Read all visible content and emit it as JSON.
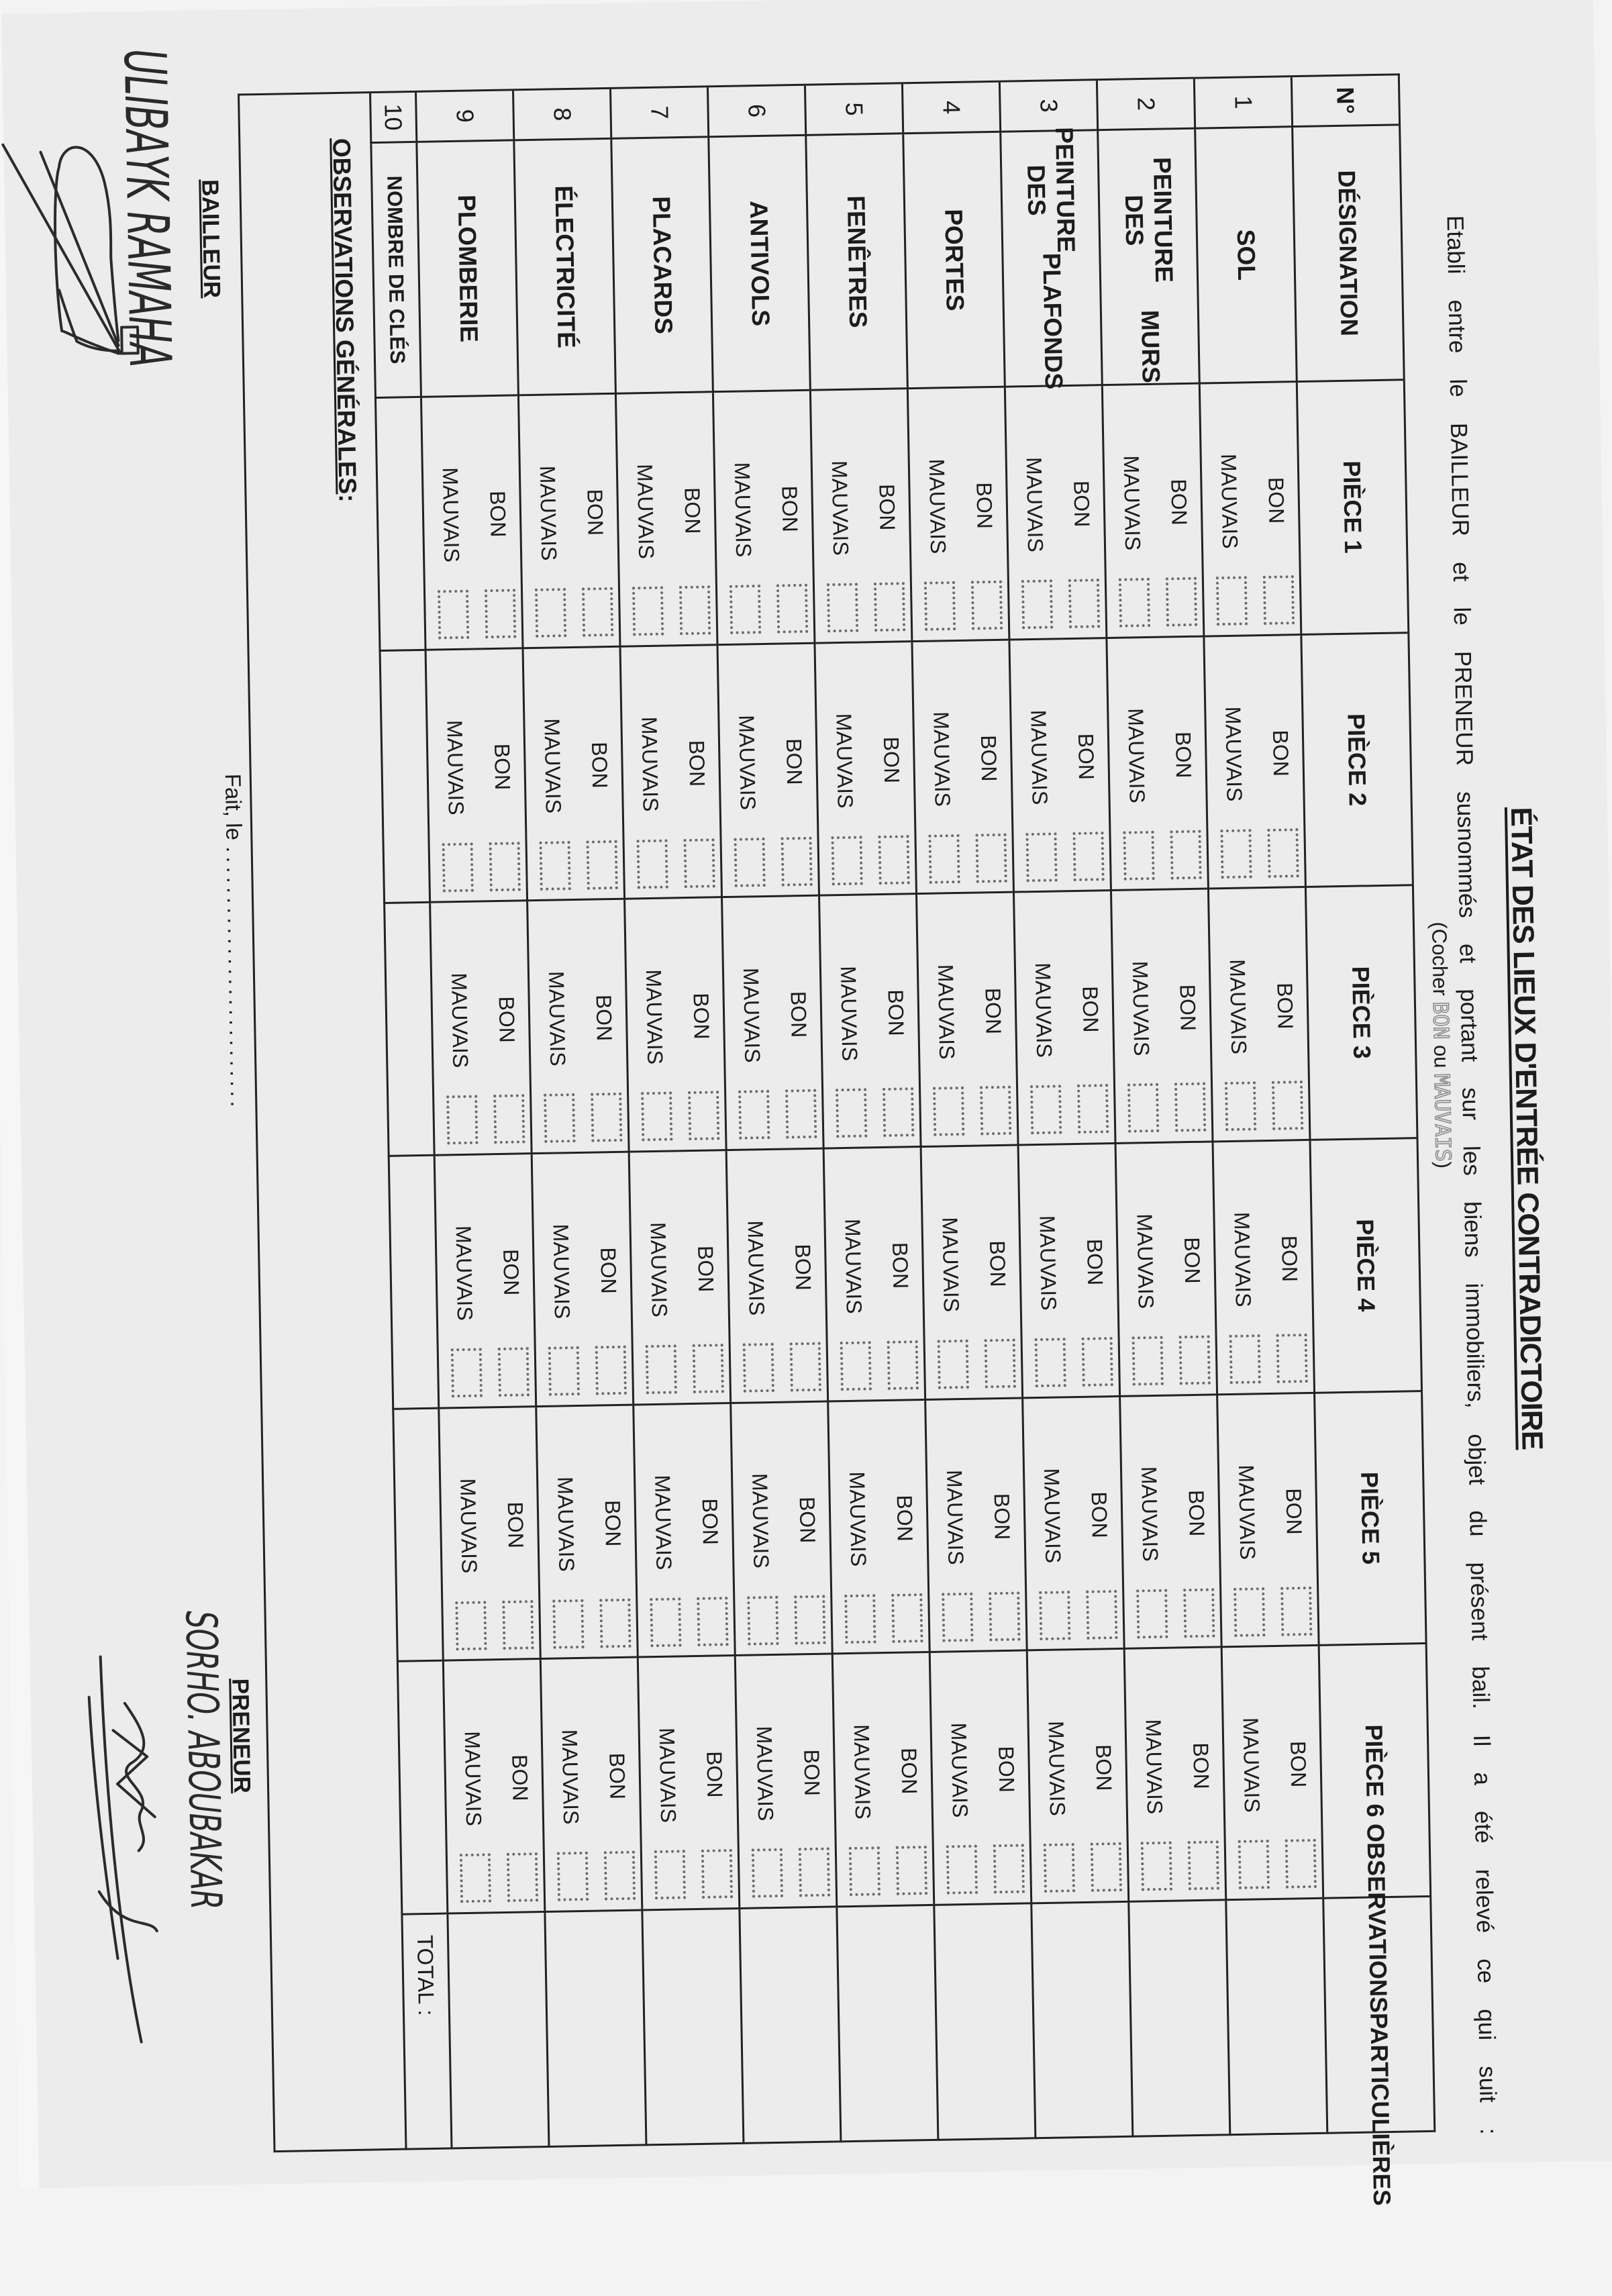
{
  "document": {
    "title": "ÉTAT DES LIEUX D'ENTRÉE CONTRADICTOIRE",
    "intro": "Etabli entre le BAILLEUR et le PRENEUR susnommés et portant sur les biens immobiliers, objet du présent bail. Il a été relevé ce qui suit :",
    "instruction": {
      "prefix": "(Cocher ",
      "bon": "BON",
      "mid": " ou ",
      "mauvais": "MAUVAIS",
      "suffix": ")"
    }
  },
  "table": {
    "headers": {
      "num": "N°",
      "designation": "DÉSIGNATION",
      "rooms": [
        "PIÈCE 1",
        "PIÈCE 2",
        "PIÈCE 3",
        "PIÈCE 4",
        "PIÈCE 5",
        "PIÈCE 6"
      ],
      "observations": [
        "OBSERVATIONS",
        "PARTICULIÈRES"
      ]
    },
    "options": [
      "BON",
      "MAUVAIS"
    ],
    "rows": [
      {
        "num": "1",
        "label": [
          "SOL"
        ],
        "has_options": true
      },
      {
        "num": "2",
        "label": [
          "PEINTURE DES",
          "MURS"
        ],
        "has_options": true
      },
      {
        "num": "3",
        "label": [
          "PEINTURE DES",
          "PLAFONDS"
        ],
        "has_options": true
      },
      {
        "num": "4",
        "label": [
          "PORTES"
        ],
        "has_options": true
      },
      {
        "num": "5",
        "label": [
          "FENÊTRES"
        ],
        "has_options": true
      },
      {
        "num": "6",
        "label": [
          "ANTIVOLS"
        ],
        "has_options": true
      },
      {
        "num": "7",
        "label": [
          "PLACARDS"
        ],
        "has_options": true
      },
      {
        "num": "8",
        "label": [
          "ÉLECTRICITÉ"
        ],
        "has_options": true
      },
      {
        "num": "9",
        "label": [
          "PLOMBERIE"
        ],
        "has_options": true
      },
      {
        "num": "10",
        "label": [
          "NOMBRE DE CLÉS"
        ],
        "has_options": false
      }
    ],
    "checked": [],
    "total_label": "TOTAL :",
    "general_observations_label": "OBSERVATIONS GÉNÉRALES",
    "general_observations_suffix": " :"
  },
  "footer": {
    "date_label": "Fait, le",
    "date_dots": "..........................",
    "bailleur_label": "BAILLEUR",
    "preneur_label": "PRENEUR",
    "bailleur_name": "ULIBAYK RAMAHA",
    "preneur_name": "SORHO. ABOUBAKAR"
  }
}
